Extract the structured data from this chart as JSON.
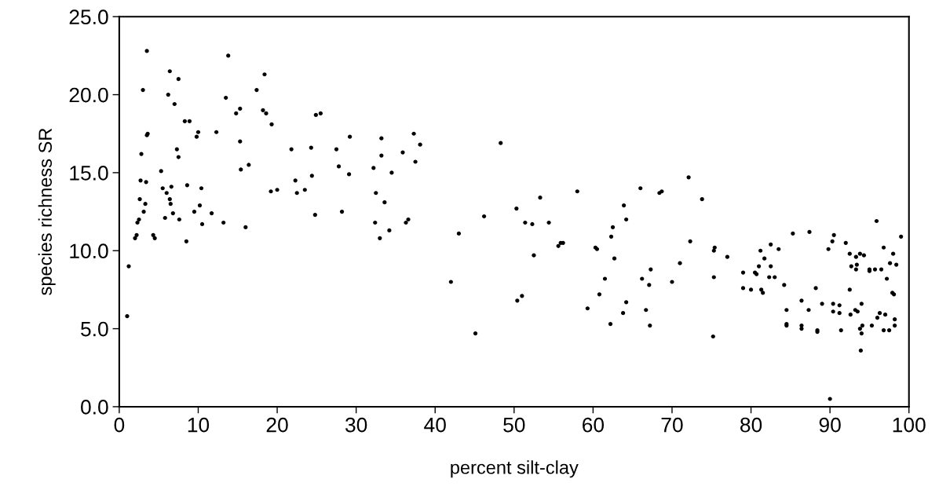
{
  "chart_data": {
    "type": "scatter",
    "xlabel": "percent silt-clay",
    "ylabel": "species richness SR",
    "xlim": [
      0,
      100
    ],
    "xticks": [
      0,
      10,
      20,
      30,
      40,
      50,
      60,
      70,
      80,
      90,
      100
    ],
    "ylim": [
      0,
      25
    ],
    "yticks": [
      {
        "value": 0,
        "label": "0.0"
      },
      {
        "value": 5,
        "label": "5.0"
      },
      {
        "value": 10,
        "label": "10.0"
      },
      {
        "value": 15,
        "label": "15.0"
      },
      {
        "value": 20,
        "label": "20.0"
      },
      {
        "value": 25,
        "label": "25.0"
      }
    ],
    "grid": false,
    "legend": false,
    "marker": "circle",
    "series": [
      {
        "color": "#000000",
        "x": [
          1.0,
          1.2,
          2.0,
          2.2,
          2.3,
          2.5,
          2.6,
          2.7,
          2.8,
          3.0,
          3.1,
          3.3,
          3.4,
          3.5,
          3.6,
          3.5,
          4.3,
          4.5,
          5.3,
          5.5,
          5.8,
          6.0,
          6.2,
          6.4,
          6.4,
          6.5,
          6.6,
          6.8,
          7.0,
          7.3,
          7.5,
          7.5,
          7.6,
          8.3,
          8.5,
          8.6,
          8.9,
          9.5,
          9.8,
          10.0,
          10.2,
          10.4,
          10.5,
          11.7,
          12.3,
          13.2,
          13.5,
          13.8,
          14.8,
          15.3,
          15.3,
          15.4,
          16.0,
          16.4,
          17.4,
          18.2,
          18.4,
          18.6,
          19.2,
          19.3,
          20.0,
          21.8,
          22.3,
          22.5,
          23.5,
          24.3,
          24.4,
          24.8,
          24.9,
          25.5,
          27.5,
          27.8,
          28.2,
          29.1,
          29.2,
          32.2,
          32.4,
          32.5,
          33.0,
          33.2,
          33.2,
          33.6,
          34.2,
          34.5,
          35.9,
          36.3,
          36.6,
          37.3,
          37.5,
          38.1,
          42.0,
          43.0,
          45.1,
          46.2,
          48.3,
          50.3,
          50.4,
          51.0,
          51.4,
          52.3,
          52.5,
          53.3,
          54.4,
          55.6,
          55.9,
          56.2,
          58.0,
          59.3,
          60.3,
          60.5,
          60.8,
          61.5,
          62.2,
          62.3,
          62.5,
          62.7,
          63.8,
          63.9,
          64.2,
          64.2,
          66.0,
          66.2,
          66.7,
          67.1,
          67.3,
          67.2,
          68.4,
          68.7,
          70.0,
          71.0,
          72.1,
          72.3,
          73.8,
          75.2,
          75.3,
          75.3,
          75.4,
          77.0,
          79.0,
          79.0,
          80.0,
          80.5,
          80.7,
          81.0,
          81.3,
          81.5,
          81.7,
          81.2,
          82.3,
          82.5,
          82.5,
          83.5,
          83.0,
          84.2,
          84.5,
          84.5,
          84.5,
          85.3,
          86.4,
          86.4,
          86.4,
          87.4,
          87.3,
          88.2,
          88.4,
          88.4,
          89.0,
          89.8,
          90.3,
          90.4,
          90.4,
          90.0,
          90.5,
          91.2,
          91.2,
          91.4,
          92.0,
          92.5,
          92.5,
          92.7,
          92.6,
          93.3,
          93.2,
          93.3,
          93.4,
          93.5,
          93.8,
          93.8,
          93.9,
          94.0,
          94.1,
          94.0,
          94.3,
          95.0,
          95.0,
          95.3,
          95.7,
          95.9,
          96.0,
          96.3,
          96.5,
          96.8,
          96.8,
          97.0,
          97.2,
          97.5,
          97.6,
          97.9,
          98.0,
          98.1,
          98.2,
          98.2,
          98.4,
          99.0
        ],
        "values": [
          5.8,
          9.0,
          10.8,
          11.0,
          11.8,
          12.0,
          13.3,
          14.5,
          16.2,
          20.3,
          12.5,
          13.0,
          14.4,
          17.4,
          17.5,
          22.8,
          11.0,
          10.8,
          15.1,
          14.0,
          12.1,
          13.7,
          20.0,
          21.5,
          13.3,
          13.0,
          14.1,
          12.4,
          19.4,
          16.5,
          16.0,
          21.0,
          12.0,
          18.3,
          10.6,
          14.2,
          18.3,
          12.5,
          17.3,
          17.6,
          12.9,
          14.0,
          11.7,
          12.4,
          17.6,
          11.8,
          19.8,
          22.5,
          18.8,
          19.1,
          17.0,
          15.2,
          11.5,
          15.5,
          20.3,
          19.0,
          21.3,
          18.8,
          13.8,
          18.1,
          13.9,
          16.5,
          14.5,
          13.7,
          13.9,
          16.6,
          14.8,
          12.3,
          18.7,
          18.8,
          16.5,
          15.4,
          12.5,
          14.9,
          17.3,
          15.3,
          11.8,
          13.7,
          10.8,
          16.1,
          17.2,
          13.1,
          11.3,
          15.0,
          16.3,
          11.8,
          12.0,
          17.5,
          15.7,
          16.8,
          8.0,
          11.1,
          4.7,
          12.2,
          16.9,
          12.7,
          6.8,
          7.1,
          11.8,
          11.7,
          9.7,
          13.4,
          11.8,
          10.3,
          10.5,
          10.5,
          13.8,
          6.3,
          10.2,
          10.1,
          7.2,
          8.2,
          5.3,
          10.9,
          11.5,
          9.5,
          6.0,
          12.9,
          6.7,
          12.0,
          14.0,
          8.2,
          6.2,
          7.8,
          8.8,
          5.2,
          13.7,
          13.8,
          8.0,
          9.2,
          14.7,
          10.6,
          13.3,
          4.5,
          8.3,
          10.0,
          10.2,
          9.6,
          8.6,
          7.6,
          7.5,
          8.6,
          8.5,
          9.0,
          7.5,
          7.3,
          9.5,
          10.0,
          8.3,
          9.0,
          10.4,
          10.1,
          8.3,
          7.8,
          6.2,
          5.2,
          5.3,
          11.1,
          5.2,
          5.0,
          6.8,
          11.2,
          6.2,
          7.6,
          4.8,
          4.9,
          6.6,
          10.1,
          10.6,
          6.6,
          6.1,
          0.5,
          11.0,
          6.5,
          6.0,
          4.9,
          10.5,
          9.8,
          7.5,
          9.0,
          5.9,
          9.6,
          6.2,
          8.8,
          9.1,
          6.1,
          9.8,
          5.0,
          3.6,
          4.7,
          5.2,
          6.6,
          9.7,
          8.8,
          8.7,
          5.2,
          8.8,
          11.9,
          5.7,
          6.0,
          8.8,
          4.9,
          10.2,
          5.9,
          8.2,
          4.9,
          9.2,
          7.3,
          9.8,
          7.2,
          5.2,
          5.6,
          9.1,
          10.9
        ]
      }
    ]
  }
}
